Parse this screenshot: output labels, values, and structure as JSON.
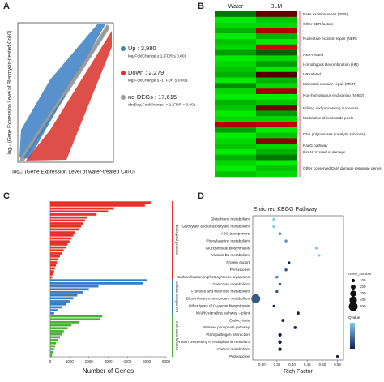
{
  "chart_data": [
    {
      "type": "scatter",
      "panel_label": "A",
      "x_label": "log₁₀ (Gene Expression Level of water-treated Col-0)",
      "y_label": "log₁₀ (Gene Expression Level of Bleomycin-treated Col-0)",
      "series": [
        {
          "name": "Up : 3,980",
          "note": "log₂FoldChange ≥ 1, FDR ≤ 0.001",
          "color": "#3b7fc4"
        },
        {
          "name": "Down : 2,279",
          "note": "log₂FoldChange ≤ -1, FDR ≤ 0.001",
          "color": "#d9302a"
        },
        {
          "name": "no-DEGs : 17,615",
          "note": "abs(log₂FoldChange) < 1, FDR > 0.001",
          "color": "#9a9a9a"
        }
      ]
    },
    {
      "type": "heatmap",
      "panel_label": "B",
      "columns": [
        "Water",
        "BLM"
      ],
      "values": [
        [
          -0.3,
          0.2
        ],
        [
          -0.9,
          -0.7
        ],
        [
          -0.8,
          -0.8
        ],
        [
          -0.6,
          0.6
        ],
        [
          -0.9,
          -0.6
        ],
        [
          -0.7,
          -0.9
        ],
        [
          -0.8,
          0.8
        ],
        [
          -0.5,
          -0.2
        ],
        [
          -0.9,
          -0.8
        ],
        [
          -0.8,
          -0.5
        ],
        [
          -0.7,
          -0.9
        ],
        [
          -0.6,
          0.1
        ],
        [
          -0.9,
          -0.6
        ],
        [
          -0.4,
          -0.8
        ],
        [
          -0.8,
          0.5
        ],
        [
          -0.9,
          -0.9
        ],
        [
          -0.6,
          -0.7
        ],
        [
          -0.7,
          0.3
        ],
        [
          -0.9,
          -0.5
        ],
        [
          -0.8,
          -0.8
        ],
        [
          0.6,
          0.7
        ],
        [
          -0.5,
          -0.9
        ],
        [
          -0.9,
          -0.7
        ],
        [
          -0.8,
          0.4
        ],
        [
          -0.7,
          -0.8
        ],
        [
          -0.9,
          -0.6
        ],
        [
          -0.6,
          -0.3
        ],
        [
          -0.8,
          -0.9
        ],
        [
          -0.9,
          -0.7
        ],
        [
          -0.7,
          -0.8
        ]
      ],
      "row_groups": [
        "Base excision repair (BER)",
        "Other BER factors",
        "Nucleotide excision repair (NER)",
        "NER-related",
        "Homologous Recombination (HR)",
        "HR-related",
        "Mismatch excision repair (MMR)",
        "Non-homologous end-joining (NHEJ)",
        "Editing and processing nucleases",
        "Modulation of nucleotide pools",
        "DNA polymerases (catalytic subunits)",
        "RadG pathway",
        "Direct reversal of damage",
        "Other conserved DNA damage response genes"
      ]
    },
    {
      "type": "bar",
      "panel_label": "C",
      "x_label": "Number of Genes",
      "xlim": [
        0,
        6000
      ],
      "xticks": [
        0,
        1000,
        2000,
        3000,
        4000,
        5000,
        6000
      ],
      "series": [
        {
          "name": "biological process",
          "color": "#e8302a",
          "values": [
            5200,
            4900,
            3300,
            3000,
            2400,
            1900,
            1800,
            1700,
            1600,
            1500,
            1300,
            1200,
            1100,
            1000,
            900,
            800,
            700,
            600,
            500,
            400,
            350,
            300,
            250,
            200,
            150,
            100
          ]
        },
        {
          "name": "cellular component",
          "color": "#3a7cc0",
          "values": [
            5000,
            4800,
            2500,
            2000,
            1700,
            1400,
            1200,
            1000,
            800,
            600,
            400,
            200
          ]
        },
        {
          "name": "molecular function",
          "color": "#4caf3a",
          "values": [
            2700,
            2600,
            1500,
            1100,
            900,
            700,
            600,
            500,
            400,
            300,
            250,
            200,
            150,
            100
          ]
        }
      ]
    },
    {
      "type": "dot",
      "panel_label": "D",
      "title": "Enriched KEGG Pathway",
      "x_label": "Rich Factor",
      "categories": [
        "Glutathione metabolism",
        "Glyoxylate and dicarboxylate metabolism",
        "ABC transporters",
        "Phenylalanine metabolism",
        "Glucosinolate biosynthesis",
        "Vitamin B6 metabolism",
        "Protein export",
        "Peroxisome",
        "Carbon fixation in photosynthetic organisms",
        "Galactose metabolism",
        "Fructose and mannose metabolism",
        "Biosynthesis of secondary metabolites",
        "Other types of O-glycan biosynthesis",
        "MAPK signaling pathway – plant",
        "Endocytosis",
        "Pentose phosphate pathway",
        "Plant-pathogen interaction",
        "Protein processing in endoplasmic reticulum",
        "Carbon metabolism",
        "Proteasome"
      ],
      "values": [
        0.34,
        0.34,
        0.36,
        0.38,
        0.48,
        0.49,
        0.39,
        0.38,
        0.35,
        0.36,
        0.35,
        0.28,
        0.34,
        0.42,
        0.37,
        0.41,
        0.36,
        0.36,
        0.36,
        0.55
      ],
      "gene_number": [
        60,
        70,
        60,
        50,
        40,
        30,
        40,
        60,
        70,
        50,
        50,
        500,
        30,
        70,
        80,
        60,
        100,
        110,
        100,
        40
      ],
      "qvalue": [
        0.04,
        0.04,
        0.03,
        0.03,
        0.04,
        0.04,
        0.01,
        0.02,
        0.03,
        0.02,
        0.02,
        0.02,
        0.01,
        0.01,
        0.01,
        0.01,
        0.01,
        0.01,
        0.01,
        0.01
      ],
      "xlim": [
        0.27,
        0.57
      ],
      "xticks": [
        {
          "value": 0.3,
          "label": "0.30"
        },
        {
          "value": 0.35,
          "label": "0.35"
        },
        {
          "value": 0.4,
          "label": "0.40"
        },
        {
          "value": 0.45,
          "label": "0.45"
        },
        {
          "value": 0.5,
          "label": "0.50"
        },
        {
          "value": 0.55,
          "label": "0.55"
        }
      ],
      "size_legend_title": "Gene_number",
      "size_ticks": [
        100,
        200,
        300,
        400,
        500
      ],
      "color_legend_title": "Qvalue"
    }
  ]
}
